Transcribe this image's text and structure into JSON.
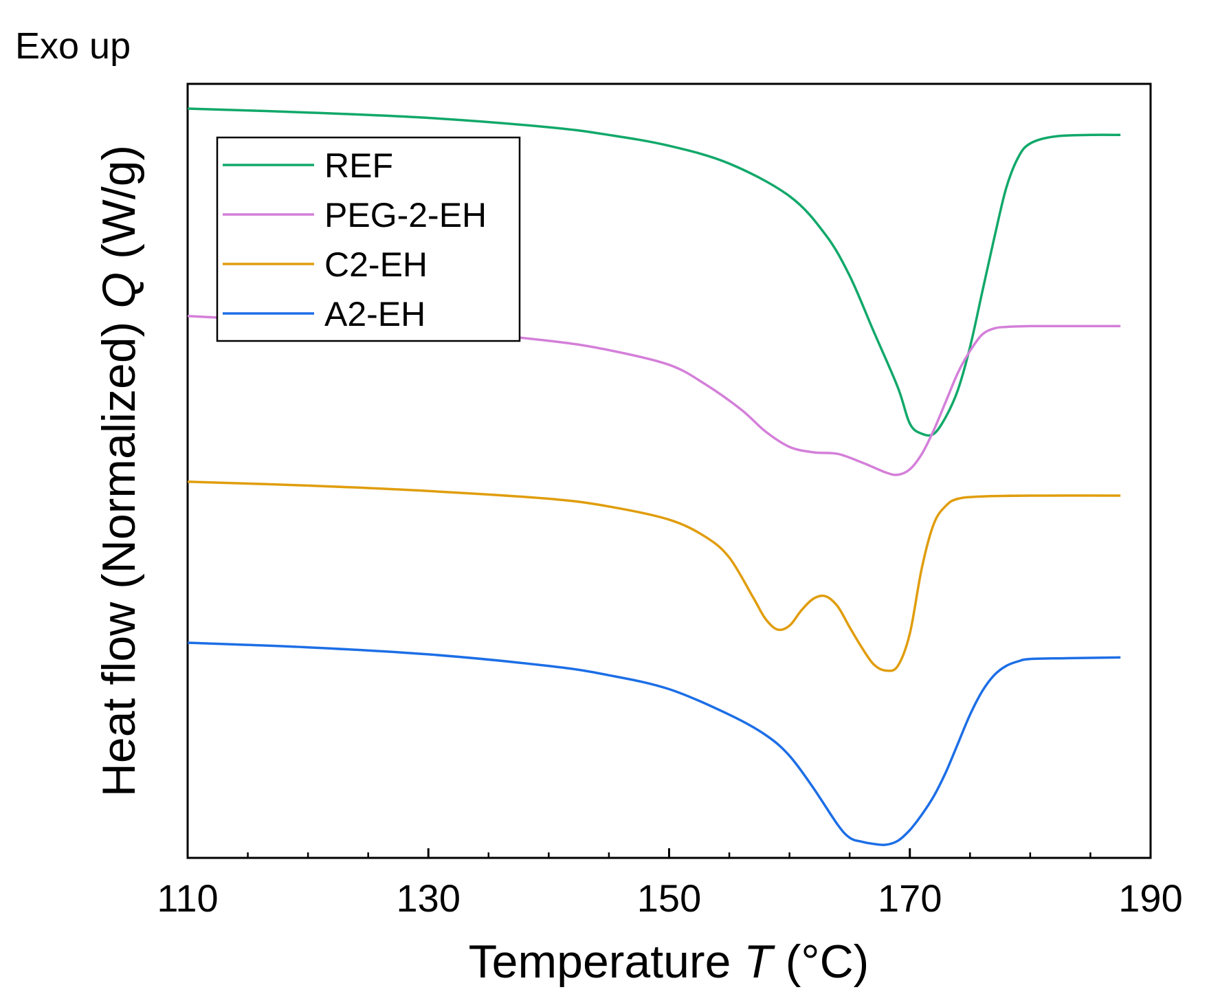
{
  "chart_data": {
    "type": "line",
    "title": "",
    "annotation": "Exo up",
    "xlabel_main": "Temperature ",
    "xlabel_symbol": "T",
    "xlabel_unit": " (°C)",
    "ylabel_main": "Heat flow (Normalized) ",
    "ylabel_symbol": "Q",
    "ylabel_unit": " (W/g)",
    "xlim": [
      110,
      190
    ],
    "ylim": [
      0,
      100
    ],
    "xticks": [
      110,
      130,
      150,
      170,
      190
    ],
    "xtick_labels": [
      "110",
      "130",
      "150",
      "170",
      "190"
    ],
    "minor_xticks": [
      115,
      120,
      125,
      135,
      140,
      145,
      155,
      160,
      165,
      175,
      180,
      185
    ],
    "y_ticks_shown": false,
    "grid": false,
    "legend_position": "top-left",
    "series": [
      {
        "name": "REF",
        "color": "#11a86a",
        "x": [
          110,
          120,
          130,
          140,
          145,
          150,
          155,
          160,
          163,
          165,
          167,
          169,
          170,
          171,
          172,
          173,
          174,
          175,
          176,
          177,
          178,
          179,
          180,
          182,
          185,
          187.5
        ],
        "y": [
          96.8,
          96.3,
          95.6,
          94.4,
          93.4,
          92.0,
          89.7,
          85.5,
          80.5,
          75.2,
          68.0,
          60.8,
          56.1,
          54.8,
          54.8,
          57.0,
          60.5,
          66.0,
          73.0,
          80.0,
          86.5,
          90.5,
          92.3,
          93.2,
          93.4,
          93.4
        ]
      },
      {
        "name": "PEG-2-EH",
        "color": "#d47fd9",
        "x": [
          110,
          120,
          130,
          140,
          145,
          150,
          153,
          156,
          158,
          160,
          162,
          164,
          166,
          168,
          169,
          170,
          171,
          172,
          173,
          174,
          175,
          176,
          177,
          178,
          180,
          183,
          187.5
        ],
        "y": [
          70.0,
          69.2,
          68.3,
          66.8,
          65.6,
          63.7,
          61.2,
          57.9,
          55.1,
          53.1,
          52.4,
          52.2,
          51.1,
          49.8,
          49.5,
          50.2,
          52.2,
          55.3,
          59.0,
          62.7,
          65.5,
          67.6,
          68.4,
          68.6,
          68.7,
          68.7,
          68.7
        ]
      },
      {
        "name": "C2-EH",
        "color": "#e09d0c",
        "x": [
          110,
          120,
          130,
          140,
          145,
          150,
          153,
          155,
          157,
          158,
          159,
          160,
          161,
          162,
          163,
          164,
          165,
          166,
          167,
          168,
          169,
          170,
          171,
          172,
          173,
          174,
          176,
          180,
          187.5
        ],
        "y": [
          48.6,
          48.1,
          47.4,
          46.4,
          45.4,
          43.7,
          41.5,
          38.8,
          33.6,
          30.9,
          29.5,
          30.0,
          32.0,
          33.5,
          33.8,
          32.5,
          29.8,
          27.2,
          25.0,
          24.2,
          24.8,
          29.0,
          37.5,
          43.2,
          45.5,
          46.4,
          46.7,
          46.8,
          46.8
        ]
      },
      {
        "name": "A2-EH",
        "color": "#1c6ee6",
        "x": [
          110,
          120,
          130,
          140,
          145,
          150,
          155,
          158,
          160,
          162,
          164,
          165,
          166,
          167,
          168,
          169,
          170,
          171,
          172,
          173,
          174,
          175,
          176,
          177,
          178,
          179,
          180,
          183,
          187.5
        ],
        "y": [
          27.8,
          27.2,
          26.3,
          24.8,
          23.6,
          21.8,
          18.5,
          15.9,
          13.2,
          9.0,
          4.3,
          2.6,
          2.1,
          1.8,
          1.7,
          2.2,
          3.6,
          5.6,
          8.0,
          11.1,
          14.8,
          18.5,
          21.5,
          23.6,
          24.8,
          25.4,
          25.7,
          25.8,
          25.9
        ]
      }
    ]
  }
}
